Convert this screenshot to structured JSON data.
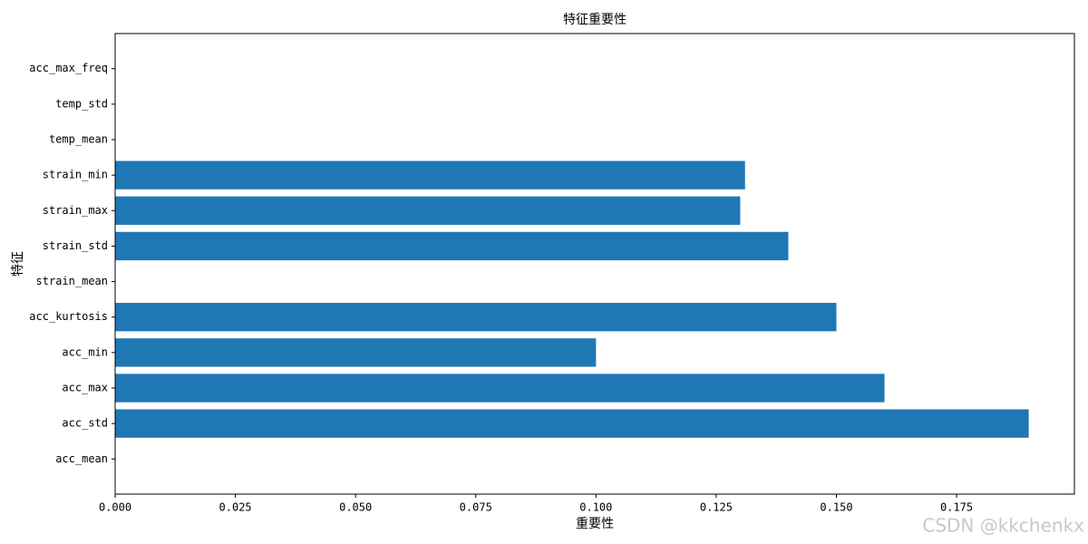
{
  "chart_data": {
    "type": "barh",
    "title": "特征重要性",
    "xlabel": "重要性",
    "ylabel": "特征",
    "categories": [
      "acc_mean",
      "acc_std",
      "acc_max",
      "acc_min",
      "acc_kurtosis",
      "strain_mean",
      "strain_std",
      "strain_max",
      "strain_min",
      "temp_mean",
      "temp_std",
      "acc_max_freq"
    ],
    "values": [
      0,
      0.19,
      0.16,
      0.1,
      0.15,
      0,
      0.14,
      0.13,
      0.131,
      0,
      0,
      0
    ],
    "color": "#1f77b4",
    "xlim": [
      0,
      0.1995
    ],
    "xticks": [
      {
        "value": 0,
        "label": "0.000"
      },
      {
        "value": 0.025,
        "label": "0.025"
      },
      {
        "value": 0.05,
        "label": "0.050"
      },
      {
        "value": 0.075,
        "label": "0.075"
      },
      {
        "value": 0.1,
        "label": "0.100"
      },
      {
        "value": 0.125,
        "label": "0.125"
      },
      {
        "value": 0.15,
        "label": "0.150"
      },
      {
        "value": 0.175,
        "label": "0.175"
      }
    ],
    "grid": false,
    "watermark": "CSDN @kkchenkx"
  }
}
